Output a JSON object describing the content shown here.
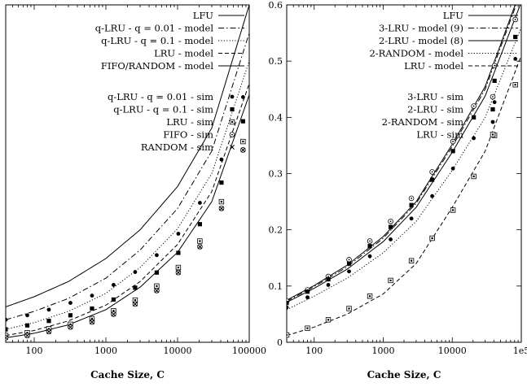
{
  "chart_data": [
    {
      "type": "line",
      "xscale": "log",
      "xlim": [
        40,
        100000
      ],
      "ylim": [
        0,
        0.6
      ],
      "xlabel": "Cache Size, C",
      "ylabel": "",
      "grid": false,
      "xticks": [
        100,
        1000,
        10000,
        100000
      ],
      "xtick_labels": [
        "100",
        "1000",
        "10000",
        "100000"
      ],
      "yticks": [],
      "legend_position": "top-right",
      "series": [
        {
          "name": "LFU",
          "style": "solid",
          "x": [
            40,
            100,
            300,
            1000,
            3000,
            10000,
            30000,
            100000
          ],
          "y": [
            0.063,
            0.081,
            0.108,
            0.149,
            0.2,
            0.277,
            0.381,
            0.6
          ]
        },
        {
          "name": "q-LRU - q = 0.01 - model",
          "style": "dashdot",
          "x": [
            40,
            100,
            300,
            1000,
            3000,
            10000,
            30000,
            100000
          ],
          "y": [
            0.04,
            0.055,
            0.078,
            0.114,
            0.164,
            0.238,
            0.34,
            0.55
          ]
        },
        {
          "name": "q-LRU - q = 0.1 - model",
          "style": "dotted",
          "x": [
            40,
            100,
            300,
            1000,
            3000,
            10000,
            30000,
            100000
          ],
          "y": [
            0.023,
            0.035,
            0.055,
            0.087,
            0.133,
            0.202,
            0.3,
            0.5
          ]
        },
        {
          "name": "LRU - model",
          "style": "dashed",
          "x": [
            40,
            100,
            300,
            1000,
            3000,
            10000,
            30000,
            100000
          ],
          "y": [
            0.012,
            0.021,
            0.038,
            0.066,
            0.108,
            0.174,
            0.268,
            0.46
          ]
        },
        {
          "name": "FIFO/RANDOM - model",
          "style": "solid",
          "x": [
            40,
            100,
            300,
            1000,
            3000,
            10000,
            30000,
            100000
          ],
          "y": [
            0.008,
            0.016,
            0.031,
            0.058,
            0.098,
            0.16,
            0.25,
            0.44
          ]
        },
        {
          "name": "q-LRU - q = 0.01 - sim",
          "marker": "dot",
          "x": [
            40,
            80,
            160,
            320,
            640,
            1280,
            2560,
            5120,
            10240,
            20480,
            40960,
            81920
          ],
          "y": [
            0.04,
            0.048,
            0.058,
            0.07,
            0.083,
            0.102,
            0.125,
            0.155,
            0.193,
            0.248,
            0.325,
            0.436
          ]
        },
        {
          "name": "q-LRU - q = 0.1 - sim",
          "marker": "square",
          "x": [
            40,
            80,
            160,
            320,
            640,
            1280,
            2560,
            5120,
            10240,
            20480,
            40960,
            81920
          ],
          "y": [
            0.023,
            0.03,
            0.038,
            0.048,
            0.06,
            0.076,
            0.097,
            0.124,
            0.159,
            0.21,
            0.284,
            0.393
          ]
        },
        {
          "name": "LRU - sim",
          "marker": "open-square",
          "x": [
            40,
            80,
            160,
            320,
            640,
            1280,
            2560,
            5120,
            10240,
            20480,
            40960,
            81920
          ],
          "y": [
            0.012,
            0.017,
            0.024,
            0.032,
            0.042,
            0.056,
            0.075,
            0.1,
            0.133,
            0.18,
            0.25,
            0.357
          ]
        },
        {
          "name": "FIFO - sim",
          "marker": "open-circle",
          "x": [
            40,
            80,
            160,
            320,
            640,
            1280,
            2560,
            5120,
            10240,
            20480,
            40960,
            81920
          ],
          "y": [
            0.008,
            0.012,
            0.019,
            0.027,
            0.036,
            0.05,
            0.068,
            0.092,
            0.124,
            0.17,
            0.238,
            0.342
          ]
        },
        {
          "name": "RANDOM - sim",
          "marker": "cross",
          "x": [
            40,
            80,
            160,
            320,
            640,
            1280,
            2560,
            5120,
            10240,
            20480,
            40960,
            81920
          ],
          "y": [
            0.008,
            0.012,
            0.019,
            0.027,
            0.036,
            0.05,
            0.068,
            0.092,
            0.124,
            0.17,
            0.238,
            0.342
          ]
        }
      ]
    },
    {
      "type": "line",
      "xscale": "log",
      "xlim": [
        40,
        100000
      ],
      "ylim": [
        0,
        0.6
      ],
      "xlabel": "Cache Size, C",
      "ylabel": "",
      "grid": false,
      "xticks": [
        100,
        1000,
        10000,
        100000
      ],
      "xtick_labels": [
        "100",
        "1000",
        "10000",
        "1e5"
      ],
      "yticks": [
        0,
        0.1,
        0.2,
        0.3,
        0.4,
        0.5,
        0.6
      ],
      "ytick_labels": [
        "0",
        "0.1",
        "0.2",
        "0.3",
        "0.4",
        "0.5",
        "0.6"
      ],
      "legend_position": "top-right",
      "series": [
        {
          "name": "LFU",
          "style": "solid",
          "x": [
            40,
            100,
            300,
            1000,
            3000,
            10000,
            30000,
            100000
          ],
          "y": [
            0.075,
            0.101,
            0.137,
            0.188,
            0.25,
            0.352,
            0.455,
            0.63
          ]
        },
        {
          "name": "3-LRU - model (9)",
          "style": "dashdot",
          "x": [
            40,
            100,
            300,
            1000,
            3000,
            10000,
            30000,
            100000
          ],
          "y": [
            0.073,
            0.099,
            0.134,
            0.185,
            0.247,
            0.348,
            0.45,
            0.625
          ]
        },
        {
          "name": "2-LRU - model (8)",
          "style": "solid",
          "x": [
            40,
            100,
            300,
            1000,
            3000,
            10000,
            30000,
            100000
          ],
          "y": [
            0.071,
            0.096,
            0.13,
            0.179,
            0.24,
            0.338,
            0.438,
            0.605
          ]
        },
        {
          "name": "2-RANDOM - model",
          "style": "dotted",
          "x": [
            40,
            100,
            300,
            1000,
            3000,
            10000,
            30000,
            100000
          ],
          "y": [
            0.058,
            0.082,
            0.114,
            0.159,
            0.215,
            0.306,
            0.4,
            0.56
          ]
        },
        {
          "name": "LRU - model",
          "style": "dashed",
          "x": [
            40,
            100,
            300,
            1000,
            3000,
            10000,
            30000,
            100000
          ],
          "y": [
            0.012,
            0.027,
            0.05,
            0.086,
            0.14,
            0.24,
            0.34,
            0.51
          ]
        },
        {
          "name": "3-LRU - sim",
          "marker": "open-circle",
          "x": [
            40,
            80,
            160,
            320,
            640,
            1280,
            2560,
            5120,
            10240,
            20480,
            40960,
            81920
          ],
          "y": [
            0.073,
            0.093,
            0.117,
            0.147,
            0.18,
            0.215,
            0.256,
            0.303,
            0.357,
            0.42,
            0.492,
            0.574
          ]
        },
        {
          "name": "2-LRU - sim",
          "marker": "square",
          "x": [
            40,
            80,
            160,
            320,
            640,
            1280,
            2560,
            5120,
            10240,
            20480,
            40960,
            81920
          ],
          "y": [
            0.07,
            0.09,
            0.112,
            0.14,
            0.171,
            0.205,
            0.244,
            0.289,
            0.34,
            0.4,
            0.465,
            0.543
          ]
        },
        {
          "name": "2-RANDOM - sim",
          "marker": "dot",
          "x": [
            40,
            80,
            160,
            320,
            640,
            1280,
            2560,
            5120,
            10240,
            20480,
            40960,
            81920
          ],
          "y": [
            0.062,
            0.08,
            0.102,
            0.126,
            0.153,
            0.183,
            0.22,
            0.26,
            0.309,
            0.363,
            0.427,
            0.504
          ]
        },
        {
          "name": "LRU - sim",
          "marker": "open-square",
          "x": [
            40,
            80,
            160,
            320,
            640,
            1280,
            2560,
            5120,
            10240,
            20480,
            40960,
            81920
          ],
          "y": [
            0.013,
            0.025,
            0.04,
            0.06,
            0.082,
            0.11,
            0.145,
            0.185,
            0.235,
            0.295,
            0.368,
            0.458
          ]
        }
      ]
    }
  ]
}
